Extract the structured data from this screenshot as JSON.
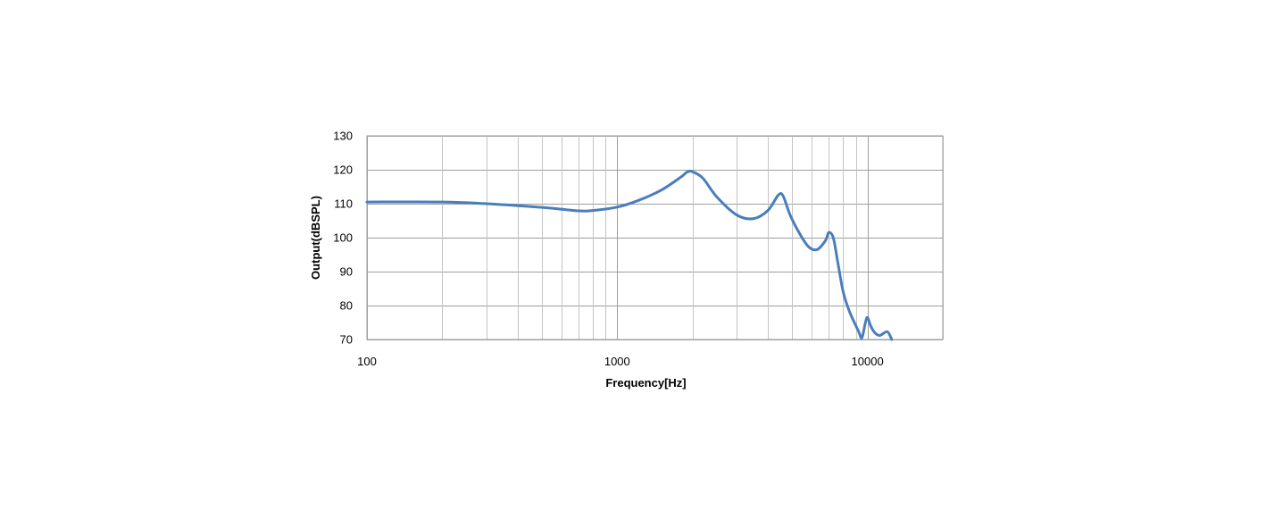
{
  "chart_data": {
    "type": "line",
    "xlabel": "Frequency[Hz]",
    "ylabel": "Output(dBSPL)",
    "x_scale": "log",
    "xlim": [
      100,
      20000
    ],
    "ylim": [
      70,
      130
    ],
    "x_ticks": [
      100,
      1000,
      10000
    ],
    "x_tick_labels": [
      "100",
      "1000",
      "10000"
    ],
    "y_ticks": [
      70,
      80,
      90,
      100,
      110,
      120,
      130
    ],
    "y_tick_labels": [
      "70",
      "80",
      "90",
      "100",
      "110",
      "120",
      "130"
    ],
    "grid": true,
    "legend": "none",
    "colors": {
      "series": "#4a7ebb",
      "grid": "#9e9e9e"
    },
    "series": [
      {
        "x": [
          100,
          200,
          300,
          500,
          700,
          800,
          1000,
          1200,
          1500,
          1800,
          1900,
          2000,
          2200,
          2500,
          3000,
          3500,
          4000,
          4400,
          4600,
          4900,
          5300,
          5800,
          6300,
          6800,
          7000,
          7300,
          7600,
          8000,
          8500,
          9200,
          9500,
          9800,
          10000,
          10300,
          10700,
          11200,
          12000,
          12500
        ],
        "y": [
          110.5,
          110.5,
          110,
          108.9,
          107.9,
          108,
          109,
          110.8,
          114,
          117.9,
          119.3,
          119.4,
          117.5,
          112,
          106.7,
          105.6,
          108,
          112.5,
          112.3,
          106.8,
          101.8,
          97.4,
          96.5,
          99.2,
          101.5,
          100,
          93,
          84,
          78,
          72.5,
          70.5,
          74.8,
          76.5,
          74,
          72,
          71.2,
          72.3,
          70
        ]
      }
    ]
  }
}
